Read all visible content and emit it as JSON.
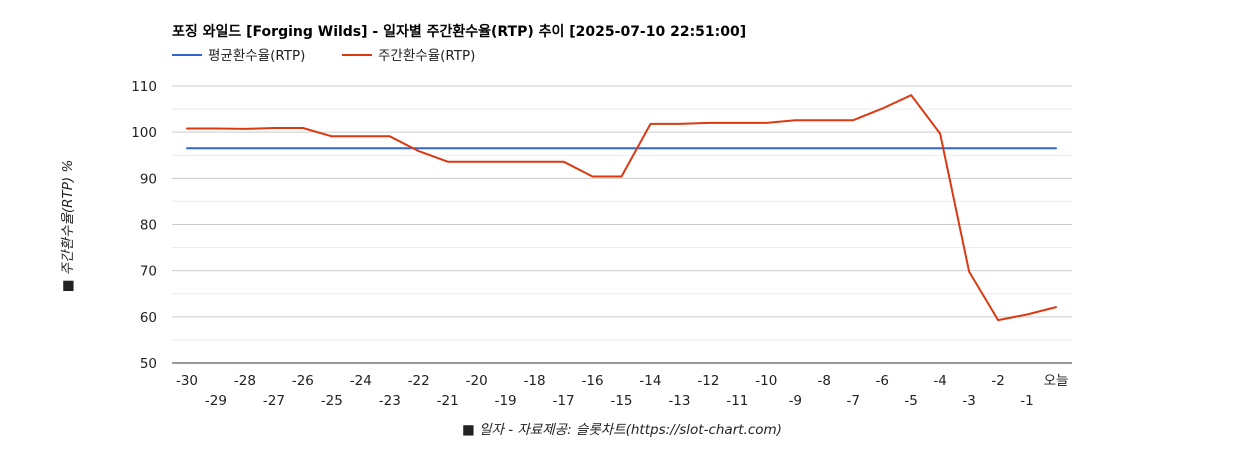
{
  "chart_data": {
    "type": "line",
    "title": "포징 와일드 [Forging Wilds] - 일자별 주간환수율(RTP) 추이 [2025-07-10 22:51:00]",
    "xlabel": "■ 일자 - 자료제공: 슬롯차트(https://slot-chart.com)",
    "ylabel": "■ 주간환수율(RTP) %",
    "ylim": [
      50,
      110
    ],
    "yticks": [
      "50",
      "60",
      "70",
      "80",
      "90",
      "100",
      "110"
    ],
    "categories": [
      "-30",
      "-29",
      "-28",
      "-27",
      "-26",
      "-25",
      "-24",
      "-23",
      "-22",
      "-21",
      "-20",
      "-19",
      "-18",
      "-17",
      "-16",
      "-15",
      "-14",
      "-13",
      "-12",
      "-11",
      "-10",
      "-9",
      "-8",
      "-7",
      "-6",
      "-5",
      "-4",
      "-3",
      "-2",
      "-1",
      "오늘"
    ],
    "legend_position": "top-left",
    "series": [
      {
        "name": "평균환수율(RTP)",
        "color": "#3366cc",
        "values": [
          96.5,
          96.5,
          96.5,
          96.5,
          96.5,
          96.5,
          96.5,
          96.5,
          96.5,
          96.5,
          96.5,
          96.5,
          96.5,
          96.5,
          96.5,
          96.5,
          96.5,
          96.5,
          96.5,
          96.5,
          96.5,
          96.5,
          96.5,
          96.5,
          96.5,
          96.5,
          96.5,
          96.5,
          96.5,
          96.5,
          96.5
        ]
      },
      {
        "name": "주간환수율(RTP)",
        "color": "#dc3912",
        "values": [
          100.8,
          100.8,
          100.7,
          100.9,
          100.9,
          99.1,
          99.1,
          99.1,
          95.9,
          93.6,
          93.6,
          93.6,
          93.6,
          93.6,
          90.4,
          90.4,
          101.8,
          101.8,
          102.0,
          102.0,
          102.0,
          102.6,
          102.6,
          102.6,
          105.1,
          108.0,
          99.7,
          69.8,
          59.3,
          60.5,
          62.1
        ]
      }
    ]
  }
}
